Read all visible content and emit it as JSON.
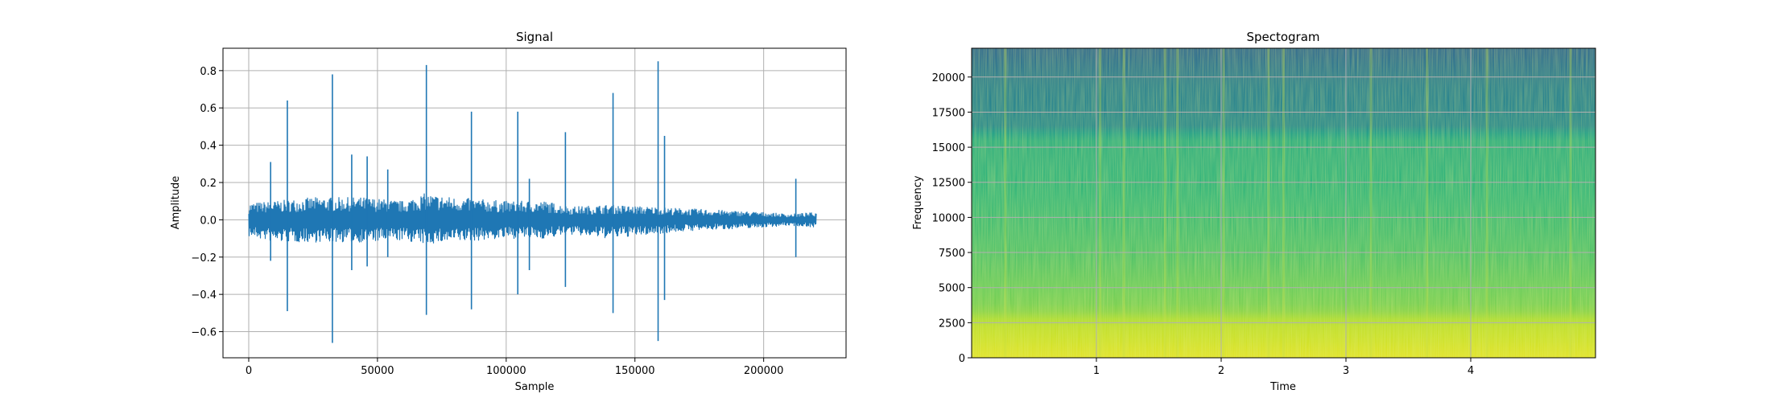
{
  "figure": {
    "colors": {
      "line": "#1f77b4",
      "grid": "#b0b0b0",
      "axes": "#000000"
    }
  },
  "chart_data": [
    {
      "type": "line",
      "title": "Signal",
      "xlabel": "Sample",
      "ylabel": "Amplitude",
      "xlim": [
        -10000,
        232000
      ],
      "ylim": [
        -0.74,
        0.92
      ],
      "xticks": [
        0,
        50000,
        100000,
        150000,
        200000
      ],
      "xtick_labels": [
        "0",
        "50000",
        "100000",
        "150000",
        "200000"
      ],
      "yticks": [
        -0.6,
        -0.4,
        -0.2,
        0.0,
        0.2,
        0.4,
        0.6,
        0.8
      ],
      "ytick_labels": [
        "−0.6",
        "−0.4",
        "−0.2",
        "0.0",
        "0.2",
        "0.4",
        "0.6",
        "0.8"
      ],
      "grid": true,
      "series": [
        {
          "x_range": [
            0,
            220500
          ],
          "envelope": {
            "x": [
              0,
              10000,
              25000,
              45000,
              60000,
              68000,
              80000,
              100000,
              115000,
              125000,
              140000,
              155000,
              170000,
              185000,
              200000,
              210000,
              220500
            ],
            "upper": [
              0.09,
              0.1,
              0.12,
              0.12,
              0.1,
              0.14,
              0.12,
              0.1,
              0.1,
              0.07,
              0.08,
              0.07,
              0.06,
              0.05,
              0.04,
              0.03,
              0.04
            ],
            "lower": [
              -0.09,
              -0.12,
              -0.12,
              -0.12,
              -0.11,
              -0.13,
              -0.12,
              -0.1,
              -0.1,
              -0.08,
              -0.1,
              -0.08,
              -0.06,
              -0.05,
              -0.04,
              -0.03,
              -0.04
            ]
          },
          "spikes": [
            {
              "x": 8500,
              "max": 0.31,
              "min": -0.22
            },
            {
              "x": 15000,
              "max": 0.64,
              "min": -0.49
            },
            {
              "x": 32500,
              "max": 0.78,
              "min": -0.66
            },
            {
              "x": 40000,
              "max": 0.35,
              "min": -0.27
            },
            {
              "x": 46000,
              "max": 0.34,
              "min": -0.25
            },
            {
              "x": 54000,
              "max": 0.27,
              "min": -0.2
            },
            {
              "x": 69000,
              "max": 0.83,
              "min": -0.51
            },
            {
              "x": 86500,
              "max": 0.58,
              "min": -0.48
            },
            {
              "x": 104500,
              "max": 0.58,
              "min": -0.4
            },
            {
              "x": 109000,
              "max": 0.22,
              "min": -0.27
            },
            {
              "x": 123000,
              "max": 0.47,
              "min": -0.36
            },
            {
              "x": 141500,
              "max": 0.68,
              "min": -0.5
            },
            {
              "x": 159000,
              "max": 0.85,
              "min": -0.65
            },
            {
              "x": 161500,
              "max": 0.45,
              "min": -0.43
            },
            {
              "x": 212500,
              "max": 0.22,
              "min": -0.2
            }
          ]
        }
      ]
    },
    {
      "type": "heatmap",
      "title": "Spectogram",
      "xlabel": "Time",
      "ylabel": "Frequency",
      "xlim": [
        0,
        5.0
      ],
      "ylim": [
        0,
        22050
      ],
      "xticks": [
        1,
        2,
        3,
        4
      ],
      "xtick_labels": [
        "1",
        "2",
        "3",
        "4"
      ],
      "yticks": [
        0,
        2500,
        5000,
        7500,
        10000,
        12500,
        15000,
        17500,
        20000
      ],
      "ytick_labels": [
        "0",
        "2500",
        "5000",
        "7500",
        "10000",
        "12500",
        "15000",
        "17500",
        "20000"
      ],
      "grid": true,
      "colormap": "viridis",
      "intensity_profile": {
        "frequency": [
          0,
          2500,
          3500,
          7500,
          12000,
          15900,
          16100,
          19500,
          22050
        ],
        "level": [
          0.96,
          0.9,
          0.8,
          0.72,
          0.66,
          0.62,
          0.47,
          0.43,
          0.34
        ]
      },
      "transient_times": [
        0.27,
        1.03,
        1.22,
        1.55,
        1.65,
        2.02,
        2.38,
        2.5,
        3.2,
        3.65,
        4.13,
        4.8
      ]
    }
  ]
}
